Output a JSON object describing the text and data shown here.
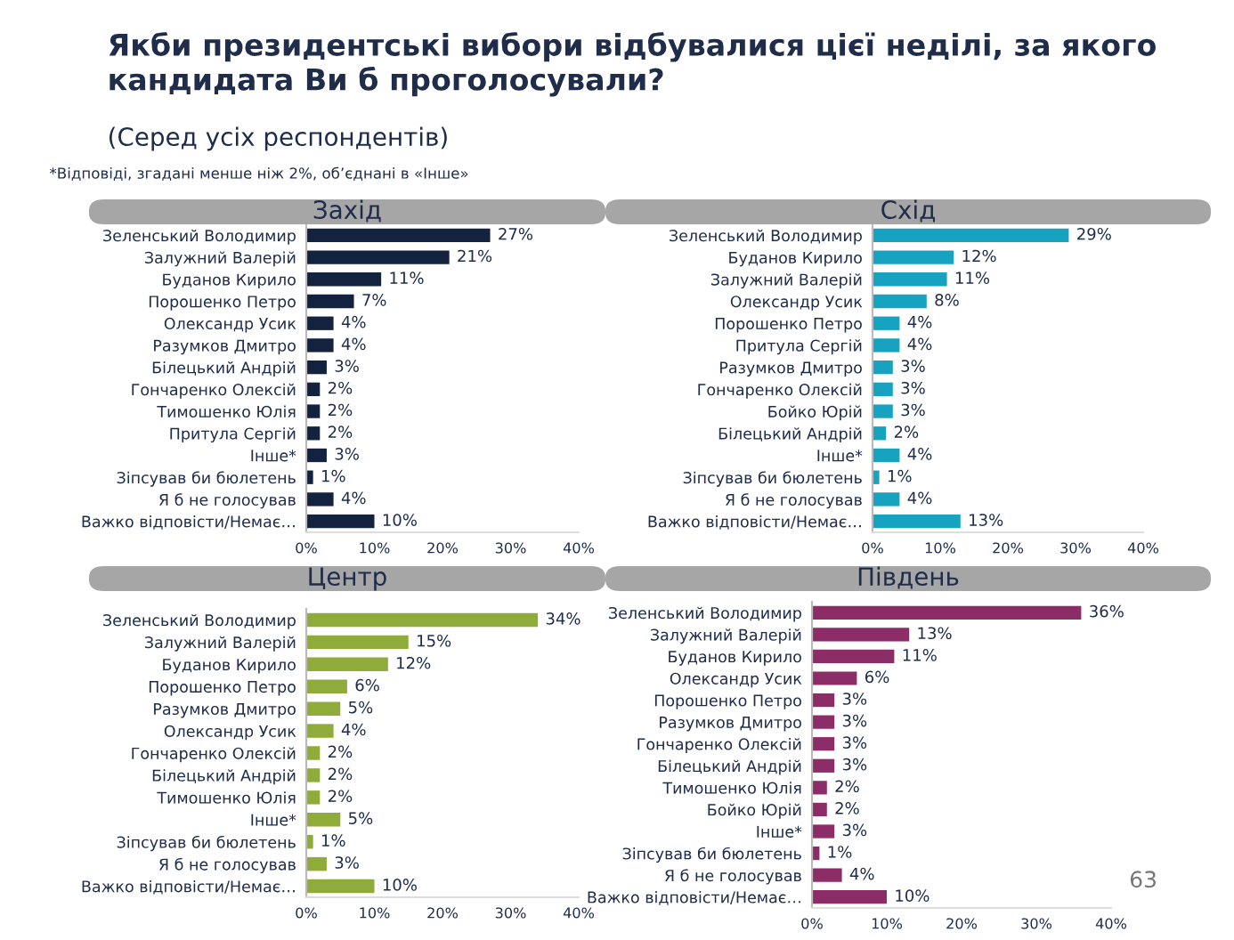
{
  "chart_data": [
    {
      "type": "bar",
      "orientation": "horizontal",
      "title": "Захід",
      "color": "#13223f",
      "grid": false,
      "legend": false,
      "annotations": [
        "Якби президентські вибори відбувалися цієї неділі, за якого кандидата Ви б проголосували?",
        "(Серед усіх респондентів)",
        "*Відповіді, згадані менше ніж 2%, об’єднані в «Інше»"
      ],
      "categories": [
        "Зеленський Володимир",
        "Залужний Валерій",
        "Буданов Кирило",
        "Порошенко Петро",
        "Олександр Усик",
        "Разумков Дмитро",
        "Білецький Андрій",
        "Гончаренко Олексій",
        "Тимошенко Юлія",
        "Притула Сергій",
        "Інше*",
        "Зіпсував би бюлетень",
        "Я б не голосував",
        "Важко відповісти/Немає…"
      ],
      "values": [
        27,
        21,
        11,
        7,
        4,
        4,
        3,
        2,
        2,
        2,
        3,
        1,
        4,
        10
      ],
      "value_labels": [
        "27%",
        "21%",
        "11%",
        "7%",
        "4%",
        "4%",
        "3%",
        "2%",
        "2%",
        "2%",
        "3%",
        "1%",
        "4%",
        "10%"
      ],
      "xlim": [
        0,
        40
      ],
      "xticks": [
        {
          "value": 0,
          "label": "0%"
        },
        {
          "value": 10,
          "label": "10%"
        },
        {
          "value": 20,
          "label": "20%"
        },
        {
          "value": 30,
          "label": "30%"
        },
        {
          "value": 40,
          "label": "40%"
        }
      ]
    },
    {
      "type": "bar",
      "orientation": "horizontal",
      "title": "Схід",
      "color": "#17a3bf",
      "grid": false,
      "legend": false,
      "categories": [
        "Зеленський Володимир",
        "Буданов Кирило",
        "Залужний Валерій",
        "Олександр Усик",
        "Порошенко Петро",
        "Притула Сергій",
        "Разумков Дмитро",
        "Гончаренко Олексій",
        "Бойко Юрій",
        "Білецький Андрій",
        "Інше*",
        "Зіпсував би бюлетень",
        "Я б не голосував",
        "Важко відповісти/Немає…"
      ],
      "values": [
        29,
        12,
        11,
        8,
        4,
        4,
        3,
        3,
        3,
        2,
        4,
        1,
        4,
        13
      ],
      "value_labels": [
        "29%",
        "12%",
        "11%",
        "8%",
        "4%",
        "4%",
        "3%",
        "3%",
        "3%",
        "2%",
        "4%",
        "1%",
        "4%",
        "13%"
      ],
      "xlim": [
        0,
        40
      ],
      "xticks": [
        {
          "value": 0,
          "label": "0%"
        },
        {
          "value": 10,
          "label": "10%"
        },
        {
          "value": 20,
          "label": "20%"
        },
        {
          "value": 30,
          "label": "30%"
        },
        {
          "value": 40,
          "label": "40%"
        }
      ]
    },
    {
      "type": "bar",
      "orientation": "horizontal",
      "title": "Центр",
      "color": "#8fac3a",
      "grid": false,
      "legend": false,
      "categories": [
        "Зеленський Володимир",
        "Залужний Валерій",
        "Буданов Кирило",
        "Порошенко Петро",
        "Разумков Дмитро",
        "Олександр Усик",
        "Гончаренко Олексій",
        "Білецький Андрій",
        "Тимошенко Юлія",
        "Інше*",
        "Зіпсував би бюлетень",
        "Я б не голосував",
        "Важко відповісти/Немає…"
      ],
      "values": [
        34,
        15,
        12,
        6,
        5,
        4,
        2,
        2,
        2,
        5,
        1,
        3,
        10
      ],
      "value_labels": [
        "34%",
        "15%",
        "12%",
        "6%",
        "5%",
        "4%",
        "2%",
        "2%",
        "2%",
        "5%",
        "1%",
        "3%",
        "10%"
      ],
      "xlim": [
        0,
        40
      ],
      "xticks": [
        {
          "value": 0,
          "label": "0%"
        },
        {
          "value": 10,
          "label": "10%"
        },
        {
          "value": 20,
          "label": "20%"
        },
        {
          "value": 30,
          "label": "30%"
        },
        {
          "value": 40,
          "label": "40%"
        }
      ]
    },
    {
      "type": "bar",
      "orientation": "horizontal",
      "title": "Південь",
      "color": "#8c2d68",
      "grid": false,
      "legend": false,
      "annotations": [
        "63"
      ],
      "categories": [
        "Зеленський Володимир",
        "Залужний Валерій",
        "Буданов Кирило",
        "Олександр Усик",
        "Порошенко Петро",
        "Разумков Дмитро",
        "Гончаренко Олексій",
        "Білецький Андрій",
        "Тимошенко Юлія",
        "Бойко Юрій",
        "Інше*",
        "Зіпсував би бюлетень",
        "Я б не голосував",
        "Важко відповісти/Немає…"
      ],
      "values": [
        36,
        13,
        11,
        6,
        3,
        3,
        3,
        3,
        2,
        2,
        3,
        1,
        4,
        10
      ],
      "value_labels": [
        "36%",
        "13%",
        "11%",
        "6%",
        "3%",
        "3%",
        "3%",
        "3%",
        "2%",
        "2%",
        "3%",
        "1%",
        "4%",
        "10%"
      ],
      "xlim": [
        0,
        40
      ],
      "xticks": [
        {
          "value": 0,
          "label": "0%"
        },
        {
          "value": 10,
          "label": "10%"
        },
        {
          "value": 20,
          "label": "20%"
        },
        {
          "value": 30,
          "label": "30%"
        },
        {
          "value": 40,
          "label": "40%"
        }
      ]
    }
  ]
}
